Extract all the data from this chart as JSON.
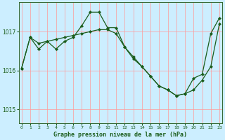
{
  "title": "Graphe pression niveau de la mer (hPa)",
  "background_color": "#cceeff",
  "grid_color": "#ff9999",
  "line_color": "#1a5c1a",
  "marker_color": "#1a5c1a",
  "xlim": [
    -0.3,
    23.3
  ],
  "ylim": [
    1014.65,
    1017.75
  ],
  "yticks": [
    1015,
    1016,
    1017
  ],
  "xticks": [
    0,
    1,
    2,
    3,
    4,
    5,
    6,
    7,
    8,
    9,
    10,
    11,
    12,
    13,
    14,
    15,
    16,
    17,
    18,
    19,
    20,
    21,
    22,
    23
  ],
  "series1_x": [
    0,
    1,
    2,
    3,
    4,
    5,
    6,
    7,
    8,
    9,
    10,
    11,
    12,
    13,
    14,
    15,
    16,
    17,
    18,
    19,
    20,
    21,
    22,
    23
  ],
  "series1_y": [
    1016.05,
    1016.85,
    1016.55,
    1016.75,
    1016.55,
    1016.75,
    1016.85,
    1017.15,
    1017.5,
    1017.5,
    1017.1,
    1017.1,
    1016.6,
    1016.3,
    1016.1,
    1015.85,
    1015.6,
    1015.5,
    1015.35,
    1015.4,
    1015.8,
    1015.9,
    1016.95,
    1017.35
  ],
  "series2_x": [
    0,
    1,
    2,
    3,
    4,
    5,
    6,
    7,
    8,
    9,
    10,
    11,
    12,
    13,
    14,
    15,
    16,
    17,
    18,
    19,
    20,
    21,
    22,
    23
  ],
  "series2_y": [
    1016.05,
    1016.85,
    1016.7,
    1016.75,
    1016.8,
    1016.85,
    1016.9,
    1016.95,
    1017.0,
    1017.05,
    1017.05,
    1016.95,
    1016.6,
    1016.35,
    1016.1,
    1015.85,
    1015.6,
    1015.5,
    1015.35,
    1015.4,
    1015.5,
    1015.75,
    1016.1,
    1017.2
  ]
}
